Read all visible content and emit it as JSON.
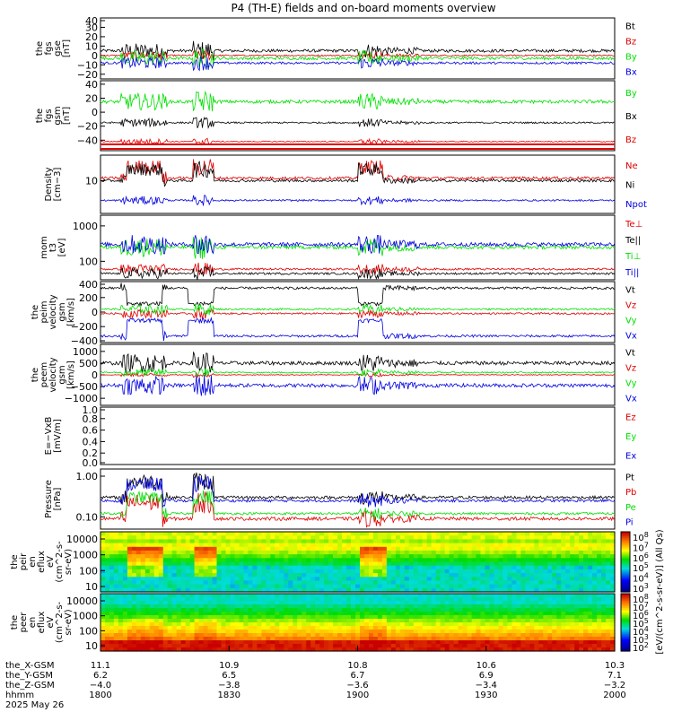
{
  "title": "P4 (TH-E) fields and on-board moments overview",
  "colors": {
    "black": "#000000",
    "red": "#e00000",
    "green": "#00e000",
    "blue": "#0000e0"
  },
  "chart_data": {
    "type": "line",
    "x_range": [
      "1800",
      "2000"
    ],
    "panels": [
      {
        "id": "fgs_gse",
        "ylabel": [
          "the",
          "fgs",
          "gse",
          "[nT]"
        ],
        "yticks": [
          "40",
          "30",
          "20",
          "10",
          "0",
          "−10",
          "−20"
        ],
        "yrange": [
          -25,
          40
        ],
        "series": [
          {
            "name": "Bt",
            "color": "black",
            "base": 5,
            "amp": 4
          },
          {
            "name": "Bz",
            "color": "red",
            "base": 0,
            "amp": 2
          },
          {
            "name": "By",
            "color": "green",
            "base": -3,
            "amp": 4
          },
          {
            "name": "Bx",
            "color": "blue",
            "base": -8,
            "amp": 3
          }
        ]
      },
      {
        "id": "fgs_gsm",
        "ylabel": [
          "the",
          "fgs",
          "gsm",
          "[nT]"
        ],
        "yticks": [
          "40",
          "20",
          "0",
          "−20",
          "−40"
        ],
        "yrange": [
          -55,
          45
        ],
        "series": [
          {
            "name": "By",
            "color": "green",
            "base": 15,
            "amp": 6
          },
          {
            "name": "Bx",
            "color": "black",
            "base": -15,
            "amp": 3
          },
          {
            "name": "Bz",
            "color": "red",
            "base": -42,
            "amp": 2
          }
        ]
      },
      {
        "id": "density",
        "ylabel": [
          "Density",
          "[cm−3]"
        ],
        "yticks": [
          "10"
        ],
        "log": true,
        "yrange": [
          1,
          60
        ],
        "series": [
          {
            "name": "Ne",
            "color": "red",
            "base": 12,
            "amp": 4
          },
          {
            "name": "Ni",
            "color": "black",
            "base": 10,
            "amp": 3
          },
          {
            "name": "Npot",
            "color": "blue",
            "base": 2.5,
            "amp": 0.3
          }
        ]
      },
      {
        "id": "temperature",
        "ylabel": [
          "mom",
          "t3",
          "[eV]"
        ],
        "yticks": [
          "1000",
          "100"
        ],
        "log": true,
        "yrange": [
          30,
          2000
        ],
        "series": [
          {
            "name": "Te⊥",
            "color": "red",
            "base": 60,
            "amp": 10
          },
          {
            "name": "Te||",
            "color": "black",
            "base": 45,
            "amp": 8
          },
          {
            "name": "Ti⊥",
            "color": "green",
            "base": 250,
            "amp": 120
          },
          {
            "name": "Ti||",
            "color": "blue",
            "base": 300,
            "amp": 150
          }
        ]
      },
      {
        "id": "peim_velocity",
        "ylabel": [
          "the",
          "peim",
          "velocity",
          "gsm",
          "[km/s]"
        ],
        "yticks": [
          "400",
          "200",
          "0",
          "−200",
          "−400"
        ],
        "yrange": [
          -420,
          420
        ],
        "series": [
          {
            "name": "Vt",
            "color": "black",
            "base": 330,
            "amp": 40
          },
          {
            "name": "Vz",
            "color": "red",
            "base": -20,
            "amp": 30
          },
          {
            "name": "Vy",
            "color": "green",
            "base": 40,
            "amp": 30
          },
          {
            "name": "Vx",
            "color": "blue",
            "base": -330,
            "amp": 40
          }
        ]
      },
      {
        "id": "peem_velocity",
        "ylabel": [
          "the",
          "peem",
          "velocity",
          "gsm",
          "[km/s]"
        ],
        "yticks": [
          "1000",
          "500",
          "0",
          "−500",
          "−1000"
        ],
        "yrange": [
          -1300,
          1300
        ],
        "series": [
          {
            "name": "Vt",
            "color": "black",
            "base": 500,
            "amp": 200
          },
          {
            "name": "Vz",
            "color": "red",
            "base": 0,
            "amp": 40
          },
          {
            "name": "Vy",
            "color": "green",
            "base": 100,
            "amp": 80
          },
          {
            "name": "Vx",
            "color": "blue",
            "base": -450,
            "amp": 200
          }
        ]
      },
      {
        "id": "efield",
        "ylabel": [
          "E=−VxB",
          "[mV/m]"
        ],
        "yticks": [
          "1.0",
          "0.8",
          "0.6",
          "0.4",
          "0.2",
          "0.0"
        ],
        "yrange": [
          0,
          1
        ],
        "series": [
          {
            "name": "Ez",
            "color": "red"
          },
          {
            "name": "Ey",
            "color": "green"
          },
          {
            "name": "Ex",
            "color": "blue"
          }
        ]
      },
      {
        "id": "pressure",
        "ylabel": [
          "Pressure",
          "[nPa]"
        ],
        "yticks": [
          "1.00",
          "0.10"
        ],
        "log": true,
        "yrange": [
          0.05,
          1.5
        ],
        "series": [
          {
            "name": "Pt",
            "color": "black",
            "base": 0.3,
            "amp": 0.08
          },
          {
            "name": "Pb",
            "color": "red",
            "base": 0.09,
            "amp": 0.03
          },
          {
            "name": "Pe",
            "color": "green",
            "base": 0.12,
            "amp": 0.02
          },
          {
            "name": "Pi",
            "color": "blue",
            "base": 0.25,
            "amp": 0.06
          }
        ]
      },
      {
        "id": "peir_eflux",
        "type": "heatmap",
        "ylabel": [
          "the",
          "peir",
          "en",
          "eflux",
          "eV",
          "(cm^2-s-",
          "sr-eV)"
        ],
        "yticks": [
          "10000",
          "1000",
          "100",
          "10"
        ],
        "colorbar": {
          "ticks": [
            "10^8",
            "10^7",
            "10^6",
            "10^5",
            "10^4",
            "10^3"
          ]
        }
      },
      {
        "id": "peer_eflux",
        "type": "heatmap",
        "ylabel": [
          "the",
          "peer",
          "en",
          "eflux",
          "eV",
          "(cm^2-s-",
          "sr-eV)"
        ],
        "yticks": [
          "10000",
          "1000",
          "100",
          "10"
        ],
        "colorbar": {
          "ticks": [
            "10^8",
            "10^7",
            "10^6",
            "10^5",
            "10^4",
            "10^3",
            "10^2"
          ]
        }
      }
    ],
    "colorbar_label": "[eV/(cm^2-s-sr-eV)] (All Qs)",
    "x_axis": {
      "rows": [
        {
          "label": "the_X-GSM",
          "values": [
            "11.1",
            "10.9",
            "10.8",
            "10.6",
            "10.3"
          ]
        },
        {
          "label": "the_Y-GSM",
          "values": [
            "6.2",
            "6.5",
            "6.7",
            "6.9",
            "7.1"
          ]
        },
        {
          "label": "the_Z-GSM",
          "values": [
            "−4.0",
            "−3.8",
            "−3.6",
            "−3.4",
            "−3.2"
          ]
        },
        {
          "label": "hhmm",
          "values": [
            "1800",
            "1830",
            "1900",
            "1930",
            "2000"
          ]
        }
      ],
      "date": "2025 May 26"
    }
  }
}
